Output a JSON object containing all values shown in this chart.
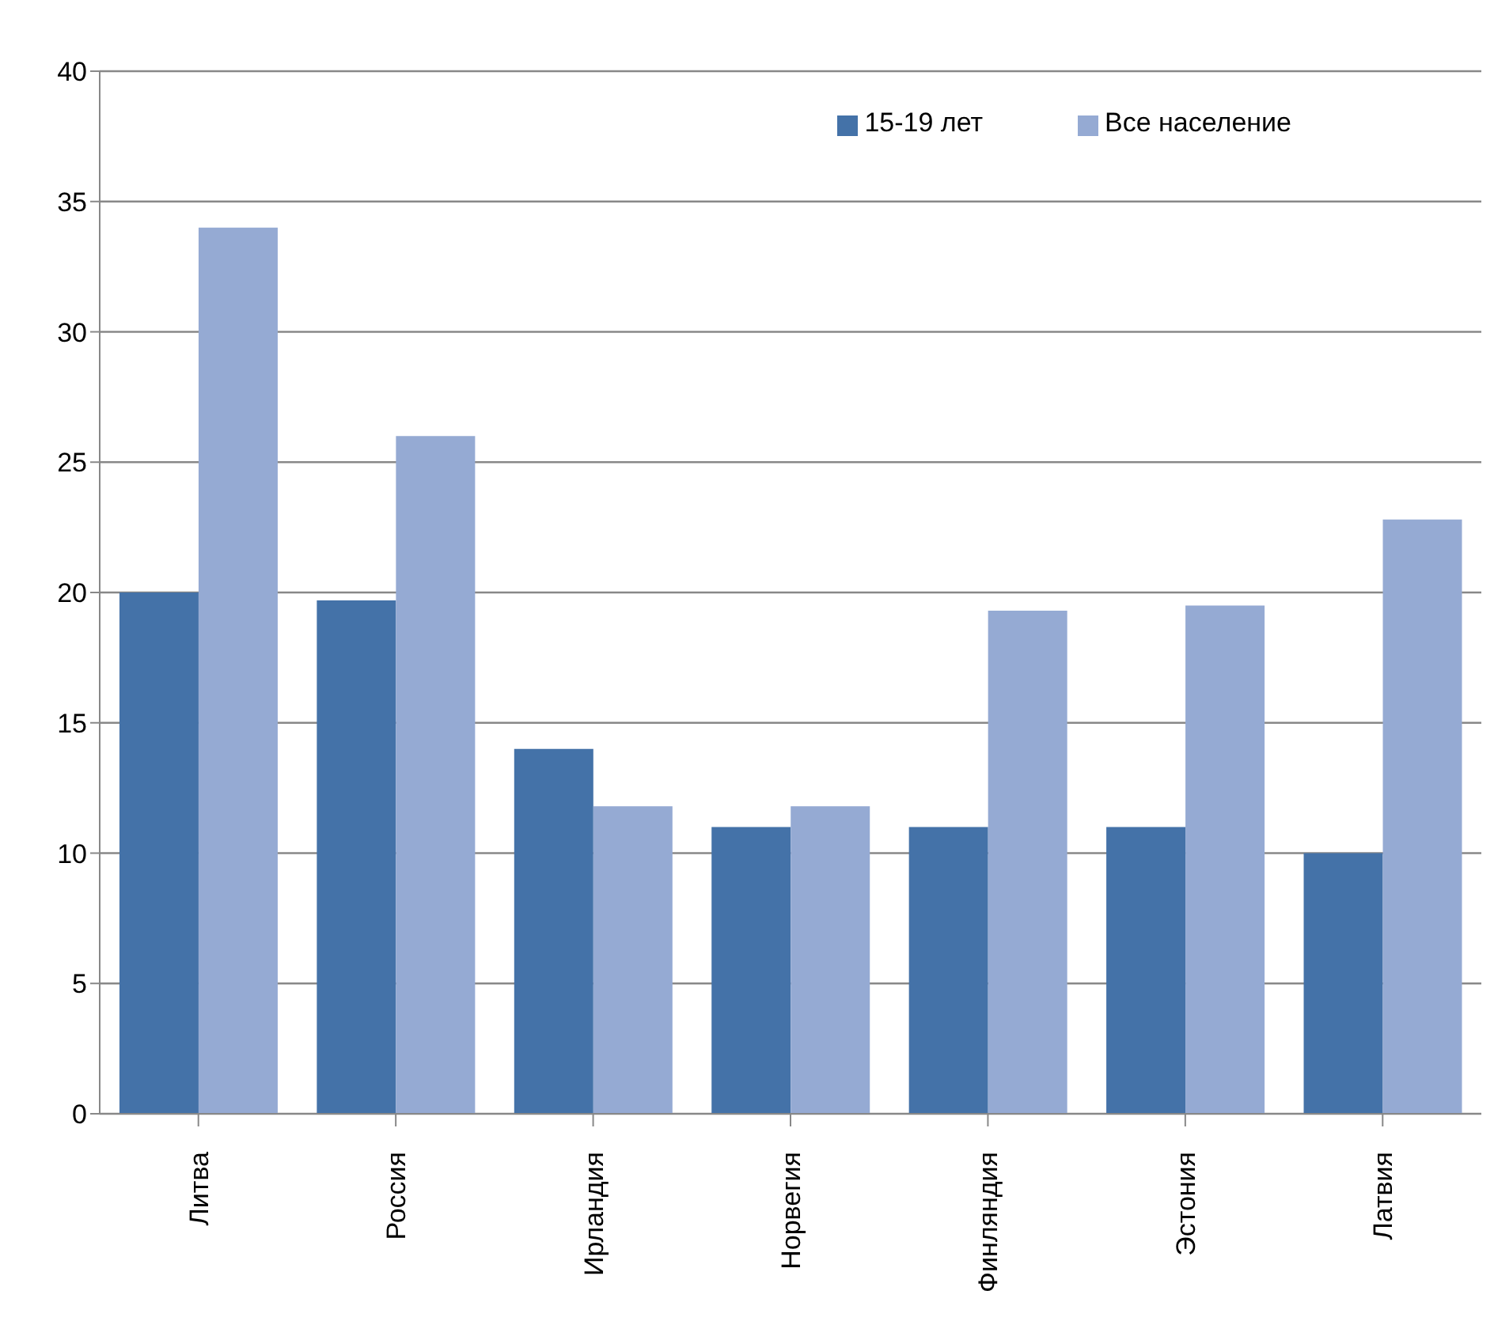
{
  "chart_data": {
    "type": "bar",
    "categories": [
      "Литва",
      "Россия",
      "Ирландия",
      "Норвегия",
      "Финляндия",
      "Эстония",
      "Латвия"
    ],
    "series": [
      {
        "name": "15-19 лет",
        "color": "#4472a8",
        "values": [
          20,
          19.7,
          14,
          11,
          11,
          11,
          10
        ]
      },
      {
        "name": "Все население",
        "color": "#95aad3",
        "values": [
          34,
          26,
          11.8,
          11.8,
          19.3,
          19.5,
          22.8
        ]
      }
    ],
    "ylim": [
      0,
      40
    ],
    "yticks": [
      0,
      5,
      10,
      15,
      20,
      25,
      30,
      35,
      40
    ],
    "grid": "y",
    "legend": "top right"
  }
}
